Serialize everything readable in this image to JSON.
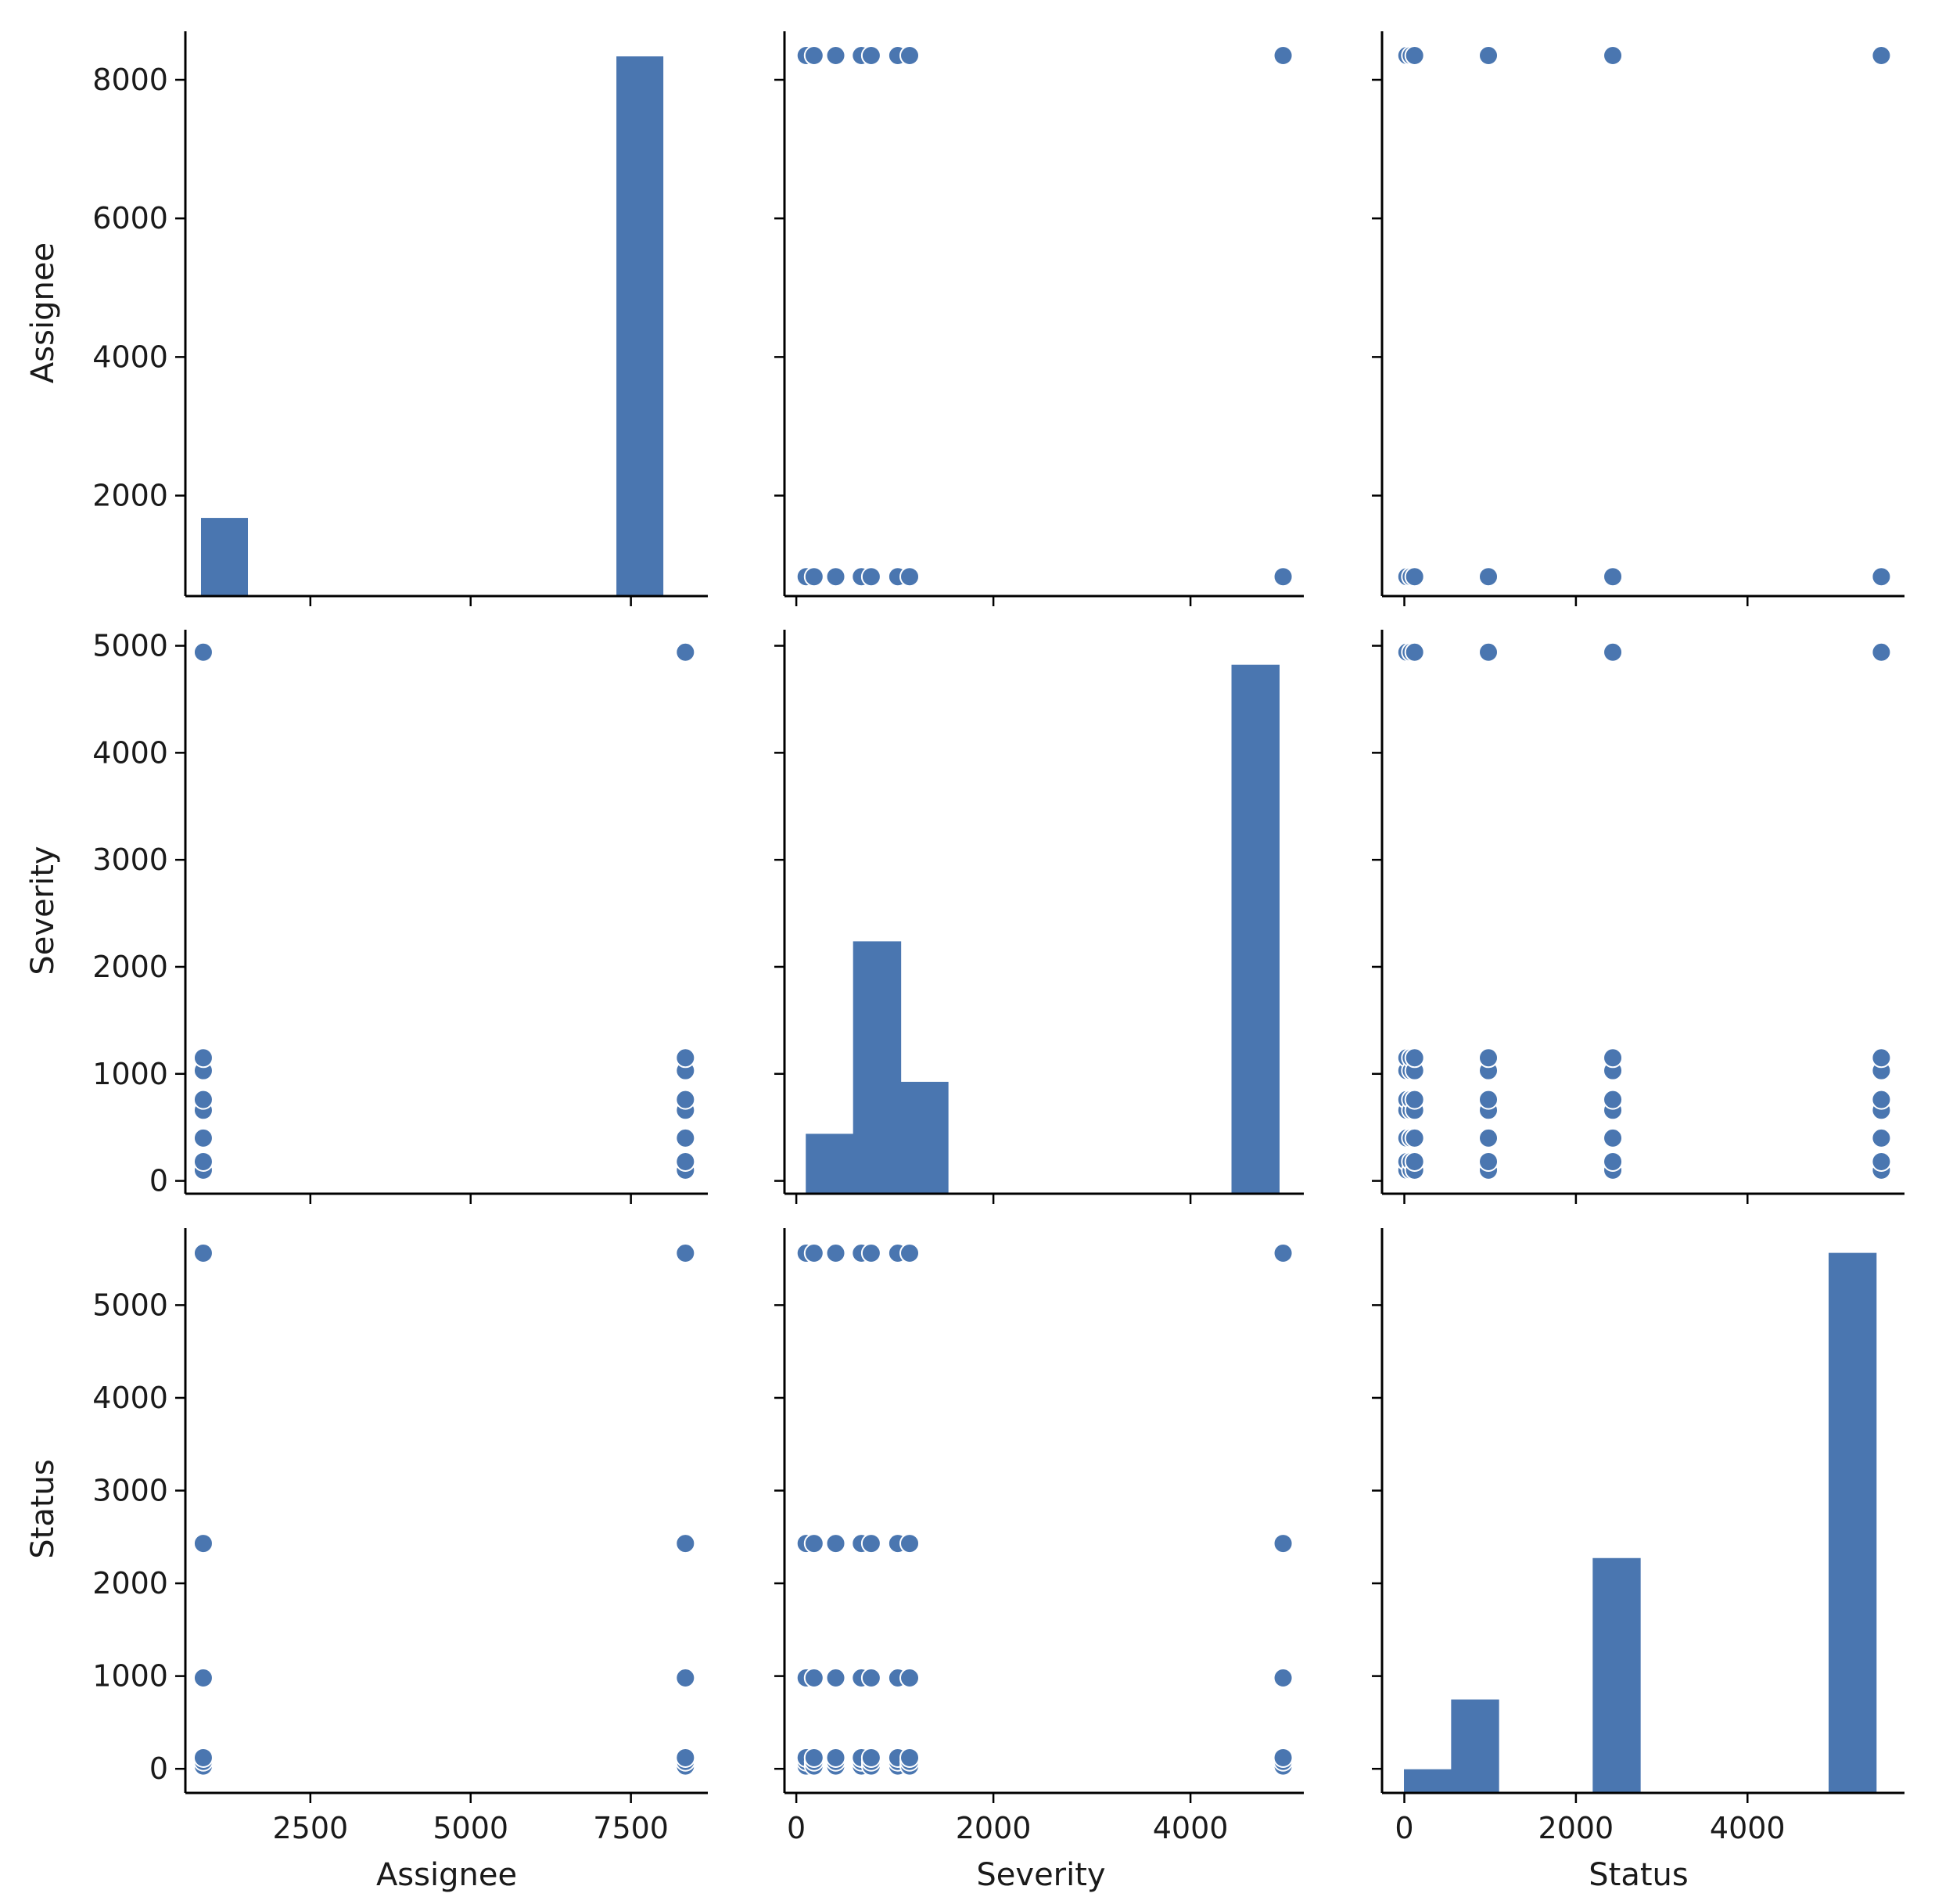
{
  "chart_data": {
    "type": "pairplot",
    "variables": [
      "Assignee",
      "Severity",
      "Status"
    ],
    "color": "#4a76b0",
    "axes": {
      "Assignee": {
        "lim": [
          550,
          8700
        ],
        "ticks": [
          2000,
          4000,
          6000,
          8000
        ],
        "xticks": [
          2500,
          5000,
          7500
        ]
      },
      "Severity": {
        "lim": [
          -120,
          5150
        ],
        "ticks": [
          0,
          1000,
          2000,
          3000,
          4000,
          5000
        ],
        "xticks": [
          0,
          2000,
          4000
        ]
      },
      "Status": {
        "lim": [
          -260,
          5830
        ],
        "ticks": [
          0,
          1000,
          2000,
          3000,
          4000,
          5000
        ],
        "xticks": [
          0,
          2000,
          4000
        ]
      }
    },
    "histograms": {
      "Assignee": {
        "bins": [
          [
            800,
            1520
          ],
          [
            1520,
            2240
          ],
          [
            2240,
            2960
          ],
          [
            2960,
            3680
          ],
          [
            3680,
            4400
          ],
          [
            4400,
            5120
          ],
          [
            5120,
            5840
          ],
          [
            5840,
            6560
          ],
          [
            6560,
            7280
          ],
          [
            7280,
            8000
          ]
        ],
        "counts": [
          1205,
          0,
          0,
          0,
          0,
          0,
          0,
          0,
          0,
          8355
        ],
        "hist_lim": [
          0,
          8750
        ]
      },
      "Severity": {
        "bins": [
          [
            100,
            580
          ],
          [
            580,
            1060
          ],
          [
            1060,
            1540
          ],
          [
            1540,
            2020
          ],
          [
            2020,
            2500
          ],
          [
            2500,
            2980
          ],
          [
            2980,
            3460
          ],
          [
            3460,
            3940
          ],
          [
            3940,
            4420
          ],
          [
            4420,
            4900
          ]
        ],
        "counts": [
          555,
          2350,
          1040,
          0,
          0,
          0,
          0,
          0,
          0,
          4930
        ],
        "hist_lim": [
          0,
          5260
        ]
      },
      "Status": {
        "bins": [
          [
            0,
            550
          ],
          [
            550,
            1100
          ],
          [
            1100,
            1650
          ],
          [
            1650,
            2200
          ],
          [
            2200,
            2750
          ],
          [
            2750,
            3300
          ],
          [
            3300,
            3850
          ],
          [
            3850,
            4400
          ],
          [
            4400,
            4950
          ],
          [
            4950,
            5500
          ]
        ],
        "counts": [
          250,
          1000,
          0,
          0,
          2520,
          0,
          0,
          0,
          0,
          5800
        ],
        "hist_lim": [
          0,
          6070
        ]
      }
    },
    "unique_values": {
      "Assignee": [
        830,
        8350
      ],
      "Severity": [
        100,
        180,
        400,
        660,
        760,
        1030,
        1150,
        4940
      ],
      "Status": [
        30,
        80,
        120,
        980,
        2430,
        5560
      ]
    },
    "xlabel_bottom": [
      "Assignee",
      "Severity",
      "Status"
    ],
    "ylabel_left": [
      "Assignee",
      "Severity",
      "Status"
    ]
  }
}
